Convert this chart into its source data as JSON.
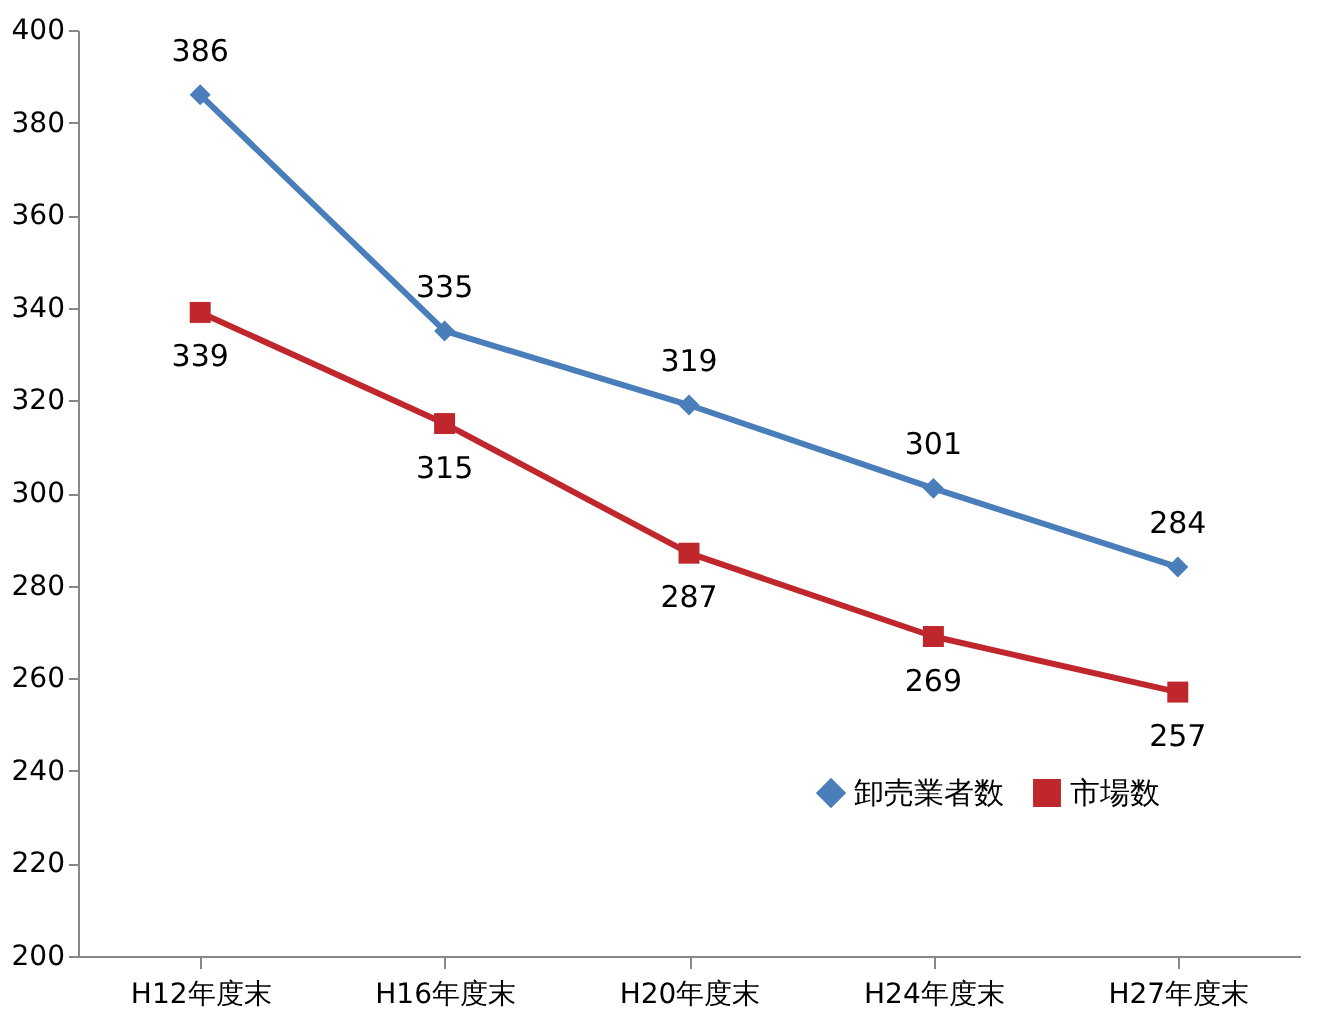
{
  "chart_data": {
    "type": "line",
    "categories": [
      "H12年度末",
      "H16年度末",
      "H20年度末",
      "H24年度末",
      "H27年度末"
    ],
    "series": [
      {
        "name": "卸売業者数",
        "color": "#4a7ebb",
        "marker": "diamond",
        "values": [
          386,
          335,
          319,
          301,
          284
        ]
      },
      {
        "name": "市場数",
        "color": "#c0272d",
        "marker": "square",
        "values": [
          339,
          315,
          287,
          269,
          257
        ]
      }
    ],
    "ylim": [
      200,
      400
    ],
    "yticks": [
      200,
      220,
      240,
      260,
      280,
      300,
      320,
      340,
      360,
      380,
      400
    ],
    "grid": false,
    "legend": "bottom right",
    "data_labels": true,
    "line_style": "solid"
  }
}
